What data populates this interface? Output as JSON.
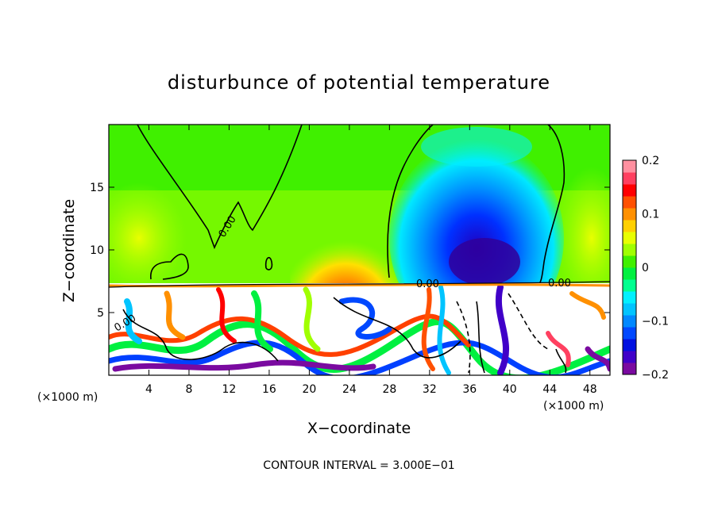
{
  "chart_data": {
    "type": "heatmap",
    "title": "disturbunce of potential temperature",
    "xlabel": "X−coordinate",
    "ylabel": "Z−coordinate",
    "x_unit_left": "(×1000 m)",
    "x_unit_right": "(×1000 m)",
    "footer": "CONTOUR INTERVAL = 3.000E−01",
    "xlim": [
      0,
      50
    ],
    "ylim": [
      0,
      20
    ],
    "x_ticks": [
      4,
      8,
      12,
      16,
      20,
      24,
      28,
      32,
      36,
      40,
      44,
      48
    ],
    "x_tick_labels": [
      "4",
      "8",
      "12",
      "16",
      "20",
      "24",
      "28",
      "32",
      "36",
      "40",
      "44",
      "48"
    ],
    "y_ticks": [
      5,
      10,
      15
    ],
    "y_tick_labels": [
      "5",
      "10",
      "15"
    ],
    "contour_labels": [
      "0.00",
      "0.00",
      "0.00",
      "0.00"
    ],
    "colorbar": {
      "range": [
        -0.2,
        0.2
      ],
      "ticks": [
        0.2,
        0.1,
        0,
        -0.1,
        -0.2
      ],
      "tick_labels": [
        "0.2",
        "0.1",
        "0",
        "−0.1",
        "−0.2"
      ],
      "colors": [
        "#7a0aa0",
        "#4000c8",
        "#0010e0",
        "#0048ff",
        "#0088ff",
        "#00c4ff",
        "#00f0ff",
        "#00ff90",
        "#00f040",
        "#40f000",
        "#a0ff00",
        "#e8ff00",
        "#ffd000",
        "#ff9000",
        "#ff5000",
        "#ff0000",
        "#ff4060",
        "#ff90a0"
      ]
    },
    "description_of_field": [
      {
        "region": "upper layer z>7.3",
        "value": 0.01,
        "note": "mostly green (near zero)"
      },
      {
        "region": "cold anomaly x=30-42, z=7-15",
        "value": -0.15,
        "note": "blue/purple core"
      },
      {
        "region": "warm anomaly x=20-26, z=7-11",
        "value": 0.1,
        "note": "orange/red"
      },
      {
        "region": "lower layer z<7.3",
        "value": 0.0,
        "note": "strong oscillations beyond colorbar range (white)"
      }
    ]
  }
}
